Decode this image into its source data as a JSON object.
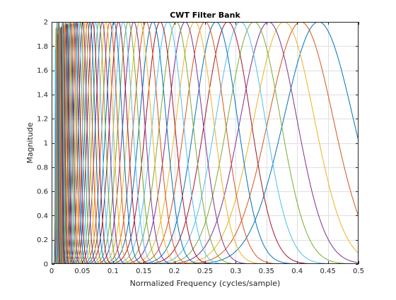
{
  "chart_data": {
    "type": "line",
    "title": "CWT Filter Bank",
    "xlabel": "Normalized Frequency  (cycles/sample)",
    "ylabel": "Magnitude",
    "xlim": [
      0,
      0.5
    ],
    "ylim": [
      0,
      2
    ],
    "xticks": [
      0,
      0.05,
      0.1,
      0.15,
      0.2,
      0.25,
      0.3,
      0.35,
      0.4,
      0.45,
      0.5
    ],
    "xtick_labels": [
      "0",
      "0.05",
      "0.1",
      "0.15",
      "0.2",
      "0.25",
      "0.3",
      "0.35",
      "0.4",
      "0.45",
      "0.5"
    ],
    "yticks": [
      0,
      0.2,
      0.4,
      0.6,
      0.8,
      1,
      1.2,
      1.4,
      1.6,
      1.8,
      2
    ],
    "ytick_labels": [
      "0",
      "0.2",
      "0.4",
      "0.6",
      "0.8",
      "1",
      "1.2",
      "1.4",
      "1.6",
      "1.8",
      "2"
    ],
    "grid": true,
    "legend": "none",
    "peak_magnitude": 2,
    "filter_center_frequencies": [
      0.4348,
      0.406,
      0.3788,
      0.3535,
      0.3298,
      0.3077,
      0.2871,
      0.2679,
      0.25,
      0.2333,
      0.2177,
      0.2031,
      0.1895,
      0.1768,
      0.165,
      0.154,
      0.1437,
      0.134,
      0.125,
      0.1167,
      0.1089,
      0.1016,
      0.0948,
      0.0884,
      0.0825,
      0.077,
      0.0718,
      0.067,
      0.0625,
      0.0583,
      0.0544,
      0.0508,
      0.0474,
      0.0442,
      0.0412,
      0.0385,
      0.0359,
      0.0335,
      0.0313,
      0.0292,
      0.0272,
      0.0254,
      0.0237,
      0.0221,
      0.0206,
      0.0192,
      0.018,
      0.0168,
      0.0156,
      0.0146,
      0.0136,
      0.0127,
      0.0119,
      0.0111,
      0.0103,
      0.0096,
      0.009,
      0.0084,
      0.0078,
      0.0073,
      0.0068,
      0.0064
    ],
    "series_colors": [
      "#0072bd",
      "#d95319",
      "#edb120",
      "#7e2f8e",
      "#77ac30",
      "#4dbeee",
      "#a2142f"
    ]
  }
}
